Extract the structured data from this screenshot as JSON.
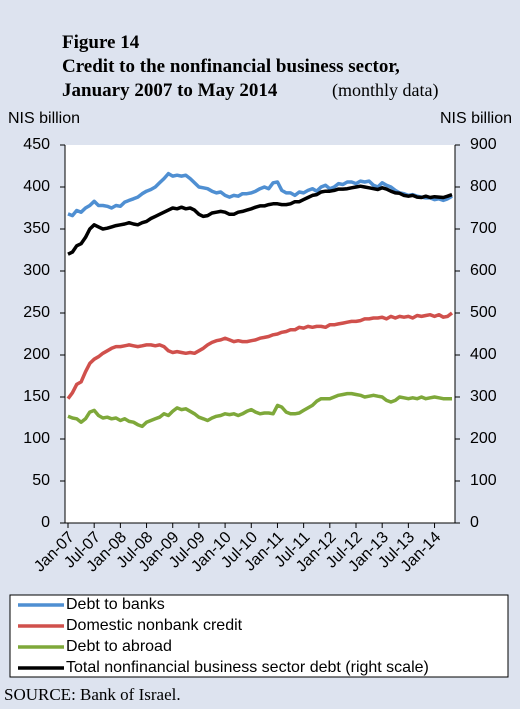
{
  "chart_data": {
    "type": "line",
    "figure": "Figure 14",
    "title": [
      "Credit to the nonfinancial business sector,",
      "January 2007 to May 2014"
    ],
    "subtitle": "(monthly data)",
    "ylabel": "NIS billion",
    "y2label": "NIS billion",
    "categories": [
      "Jan-07",
      null,
      null,
      null,
      null,
      null,
      "Jul-07",
      null,
      null,
      null,
      null,
      null,
      "Jan-08",
      null,
      null,
      null,
      null,
      null,
      "Jul-08",
      null,
      null,
      null,
      null,
      null,
      "Jan-09",
      null,
      null,
      null,
      null,
      null,
      "Jul-09",
      null,
      null,
      null,
      null,
      null,
      "Jan-10",
      null,
      null,
      null,
      null,
      null,
      "Jul-10",
      null,
      null,
      null,
      null,
      null,
      "Jan-11",
      null,
      null,
      null,
      null,
      null,
      "Jul-11",
      null,
      null,
      null,
      null,
      null,
      "Jan-12",
      null,
      null,
      null,
      null,
      null,
      "Jul-12",
      null,
      null,
      null,
      null,
      null,
      "Jan-13",
      null,
      null,
      null,
      null,
      null,
      "Jul-13",
      null,
      null,
      null,
      null,
      null,
      "Jan-14",
      null,
      null,
      null,
      null
    ],
    "ylim": [
      0,
      450
    ],
    "yticks": [
      0,
      50,
      100,
      150,
      200,
      250,
      300,
      350,
      400,
      450
    ],
    "y2lim": [
      0,
      900
    ],
    "y2ticks": [
      0,
      100,
      200,
      300,
      400,
      500,
      600,
      700,
      800,
      900
    ],
    "series": [
      {
        "name": "Debt to banks",
        "color": "#4f8fd2",
        "values": [
          368,
          366,
          372,
          370,
          375,
          378,
          383,
          378,
          378,
          377,
          375,
          378,
          377,
          382,
          384,
          386,
          388,
          392,
          395,
          397,
          400,
          405,
          410,
          416,
          413,
          414,
          413,
          414,
          410,
          405,
          400,
          399,
          398,
          395,
          393,
          394,
          390,
          388,
          390,
          389,
          392,
          392,
          393,
          395,
          398,
          400,
          398,
          405,
          406,
          396,
          393,
          393,
          390,
          394,
          393,
          396,
          398,
          395,
          400,
          402,
          398,
          400,
          404,
          403,
          406,
          406,
          404,
          407,
          406,
          407,
          402,
          400,
          405,
          402,
          400,
          396,
          393,
          392,
          390,
          391,
          389,
          388,
          387,
          387,
          385,
          386,
          384,
          386,
          389
        ]
      },
      {
        "name": "Domestic nonbank credit",
        "color": "#d0504c",
        "values": [
          148,
          155,
          165,
          168,
          180,
          190,
          195,
          198,
          202,
          205,
          208,
          210,
          210,
          211,
          212,
          211,
          210,
          211,
          212,
          212,
          211,
          212,
          210,
          205,
          203,
          204,
          203,
          202,
          203,
          202,
          205,
          208,
          212,
          215,
          217,
          218,
          220,
          218,
          216,
          217,
          216,
          216,
          217,
          218,
          220,
          221,
          222,
          224,
          225,
          227,
          228,
          230,
          230,
          233,
          232,
          234,
          233,
          234,
          234,
          233,
          236,
          236,
          237,
          238,
          239,
          240,
          240,
          241,
          243,
          243,
          244,
          244,
          245,
          243,
          246,
          244,
          246,
          245,
          246,
          244,
          247,
          246,
          247,
          248,
          246,
          248,
          245,
          246,
          250
        ]
      },
      {
        "name": "Debt to abroad",
        "color": "#7ea83a",
        "values": [
          127,
          125,
          124,
          120,
          124,
          132,
          134,
          128,
          125,
          126,
          124,
          125,
          122,
          124,
          121,
          120,
          117,
          115,
          120,
          122,
          124,
          126,
          130,
          128,
          133,
          137,
          135,
          136,
          133,
          130,
          126,
          124,
          122,
          125,
          127,
          128,
          130,
          129,
          130,
          128,
          130,
          133,
          135,
          132,
          130,
          131,
          131,
          130,
          140,
          138,
          132,
          130,
          130,
          131,
          134,
          137,
          140,
          145,
          148,
          148,
          148,
          150,
          152,
          153,
          154,
          154,
          153,
          152,
          150,
          151,
          152,
          151,
          150,
          146,
          144,
          146,
          150,
          149,
          148,
          149,
          148,
          150,
          148,
          149,
          150,
          149,
          148,
          148,
          148
        ]
      },
      {
        "name": "Total nonfinancial business sector debt (right scale)",
        "color": "#000000",
        "axis": "y2",
        "values": [
          640,
          645,
          660,
          665,
          680,
          700,
          710,
          705,
          700,
          702,
          705,
          708,
          710,
          712,
          715,
          712,
          710,
          715,
          718,
          725,
          730,
          735,
          740,
          745,
          750,
          748,
          752,
          748,
          750,
          745,
          735,
          730,
          732,
          738,
          740,
          742,
          740,
          735,
          735,
          740,
          742,
          745,
          748,
          752,
          755,
          755,
          758,
          760,
          760,
          758,
          758,
          760,
          765,
          765,
          770,
          775,
          780,
          782,
          788,
          790,
          790,
          792,
          795,
          795,
          796,
          798,
          800,
          802,
          800,
          798,
          796,
          794,
          798,
          795,
          790,
          786,
          785,
          780,
          778,
          780,
          776,
          775,
          778,
          775,
          777,
          776,
          775,
          778,
          782
        ]
      }
    ],
    "source": "SOURCE: Bank of Israel."
  }
}
